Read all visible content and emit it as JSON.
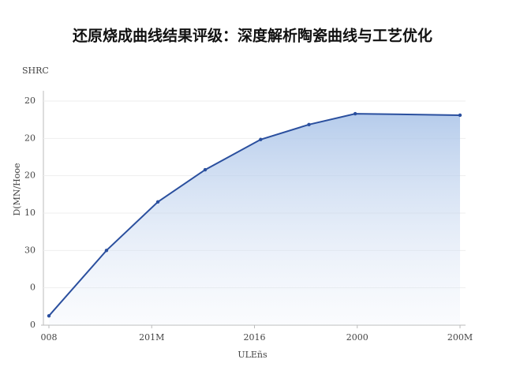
{
  "chart_data": {
    "type": "area-line",
    "title": "还原烧成曲线结果评级：深度解析陶瓷曲线与工艺优化",
    "subtitle": "SHRC",
    "x_label": "ULEñs",
    "y_label": "D(MN/Hooe",
    "x": [
      0,
      0.56,
      1.06,
      1.52,
      2.06,
      2.53,
      2.98,
      4.0
    ],
    "series": [
      {
        "name": "SHRC",
        "color": "#2a4f9e",
        "values": [
          0.25,
          2.0,
          3.3,
          4.16,
          4.97,
          5.37,
          5.66,
          5.62
        ]
      }
    ],
    "xlim": [
      0,
      4
    ],
    "xticks": [
      {
        "value": 0,
        "label": "008"
      },
      {
        "value": 1,
        "label": "201M"
      },
      {
        "value": 2,
        "label": "2016"
      },
      {
        "value": 3,
        "label": "2000"
      },
      {
        "value": 4,
        "label": "200M"
      }
    ],
    "ylim": [
      0,
      6
    ],
    "yticks": [
      0,
      {
        "value": 1,
        "label": "0"
      },
      {
        "value": 2,
        "label": "30"
      },
      {
        "value": 3,
        "label": "10"
      },
      {
        "value": 4,
        "label": "20"
      },
      {
        "value": 5,
        "label": "20"
      },
      {
        "value": 6,
        "label": "20"
      }
    ],
    "grid": true
  }
}
